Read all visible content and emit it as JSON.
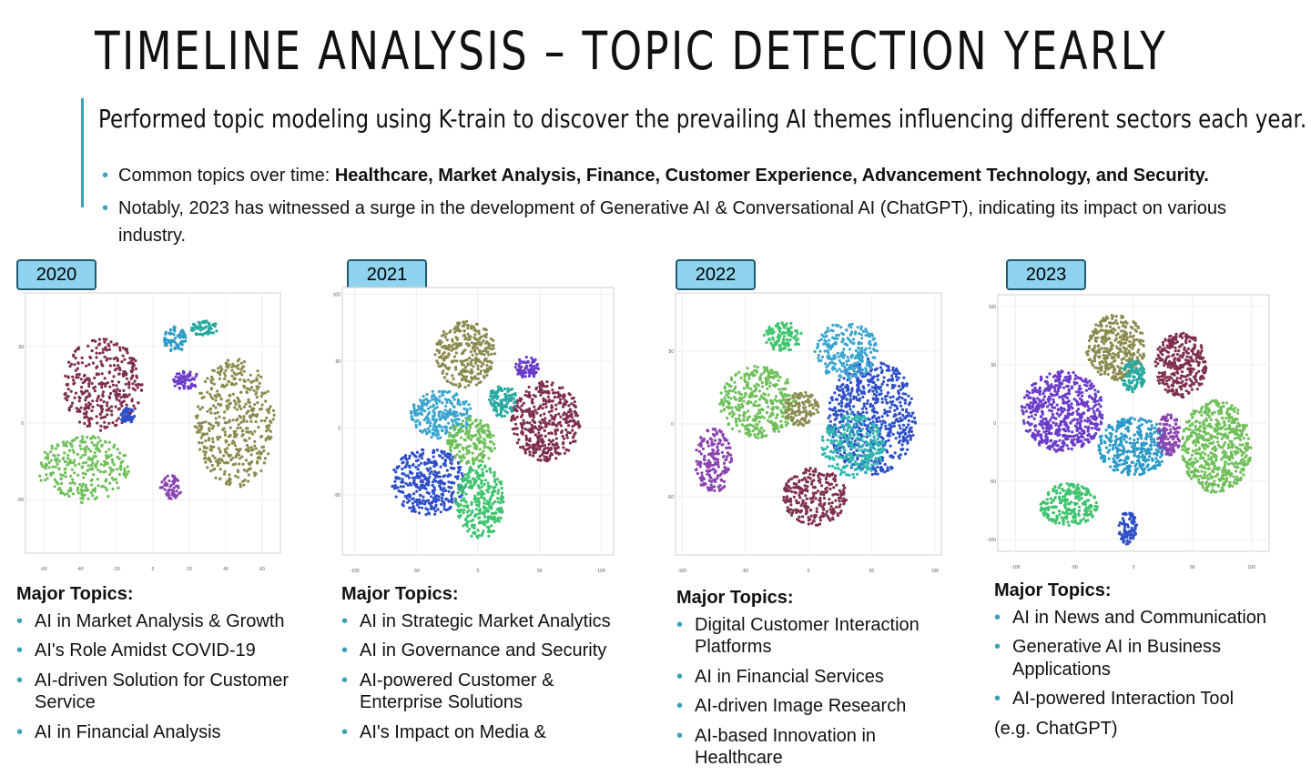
{
  "slide": {
    "title": "TIMELINE ANALYSIS – TOPIC DETECTION YEARLY",
    "subtitle": "Performed topic modeling using K-train to discover the prevailing AI themes influencing different sectors each year.",
    "bullets": [
      {
        "prefix": "Common topics over time: ",
        "bold": "Healthcare, Market Analysis, Finance, Customer Experience, Advancement Technology, and Security.",
        "suffix": ""
      },
      {
        "prefix": "Notably, 2023 has witnessed a surge in the development of Generative AI & Conversational AI (ChatGPT), indicating its impact on various industry.",
        "bold": "",
        "suffix": ""
      }
    ],
    "accent_color": "#3aa0b8",
    "badge_color": "#8fd3ee"
  },
  "panels": [
    {
      "year": "2020",
      "heading": "Major Topics:",
      "topics": [
        "AI in Market Analysis & Growth",
        "AI's Role Amidst COVID-19",
        "AI-driven Solution for Customer Service",
        "AI in Financial Analysis"
      ],
      "note": ""
    },
    {
      "year": "2021",
      "heading": "Major Topics:",
      "topics": [
        "AI in Strategic Market Analytics",
        "AI in Governance and Security",
        "AI-powered Customer & Enterprise Solutions",
        "AI's Impact on Media &"
      ],
      "note": ""
    },
    {
      "year": "2022",
      "heading": "Major Topics:",
      "topics": [
        "Digital Customer Interaction Platforms",
        "AI in Financial Services",
        "AI-driven Image Research",
        "AI-based Innovation in Healthcare"
      ],
      "note": ""
    },
    {
      "year": "2023",
      "heading": "Major Topics:",
      "topics": [
        "AI in News and Communication",
        "Generative AI in Business Applications",
        "AI-powered Interaction Tool"
      ],
      "note": "(e.g. ChatGPT)"
    }
  ],
  "chart_data": [
    {
      "type": "scatter",
      "x_ticks": [
        "-60",
        "-40",
        "-20",
        "0",
        "20",
        "40",
        "60"
      ],
      "y_ticks": [
        "50",
        "0",
        "-50"
      ],
      "clusters": [
        {
          "color": "#7e2f4f",
          "cx": -28,
          "cy": 25,
          "rx": 22,
          "ry": 30
        },
        {
          "color": "#6fbf5a",
          "cx": -38,
          "cy": -30,
          "rx": 25,
          "ry": 22
        },
        {
          "color": "#8b8a4f",
          "cx": 45,
          "cy": 0,
          "rx": 22,
          "ry": 42
        },
        {
          "color": "#2b9ac7",
          "cx": 12,
          "cy": 55,
          "rx": 6,
          "ry": 10
        },
        {
          "color": "#27a8a0",
          "cx": 28,
          "cy": 62,
          "rx": 8,
          "ry": 5
        },
        {
          "color": "#6a3cc8",
          "cx": 18,
          "cy": 28,
          "rx": 8,
          "ry": 6
        },
        {
          "color": "#8a44b0",
          "cx": 10,
          "cy": -42,
          "rx": 6,
          "ry": 8
        },
        {
          "color": "#2f4fc8",
          "cx": -14,
          "cy": 5,
          "rx": 4,
          "ry": 5
        }
      ]
    },
    {
      "type": "scatter",
      "x_ticks": [
        "-100",
        "-50",
        "0",
        "50",
        "100"
      ],
      "y_ticks": [
        "100",
        "50",
        "0",
        "-50"
      ],
      "clusters": [
        {
          "color": "#7e2f4f",
          "cx": 55,
          "cy": 5,
          "rx": 28,
          "ry": 30
        },
        {
          "color": "#2f4fc8",
          "cx": -40,
          "cy": -40,
          "rx": 30,
          "ry": 25
        },
        {
          "color": "#3fc46e",
          "cx": 2,
          "cy": -55,
          "rx": 20,
          "ry": 28
        },
        {
          "color": "#3aa6cf",
          "cx": -30,
          "cy": 10,
          "rx": 25,
          "ry": 18
        },
        {
          "color": "#8b8a4f",
          "cx": -10,
          "cy": 55,
          "rx": 25,
          "ry": 25
        },
        {
          "color": "#27a8a0",
          "cx": 20,
          "cy": 20,
          "rx": 12,
          "ry": 12
        },
        {
          "color": "#6fbf5a",
          "cx": -5,
          "cy": -10,
          "rx": 20,
          "ry": 18
        },
        {
          "color": "#6a3cc8",
          "cx": 40,
          "cy": 45,
          "rx": 10,
          "ry": 8
        }
      ]
    },
    {
      "type": "scatter",
      "x_ticks": [
        "-100",
        "-50",
        "0",
        "50",
        "100"
      ],
      "y_ticks": [
        "50",
        "0",
        "-50"
      ],
      "clusters": [
        {
          "color": "#2f4fc8",
          "cx": 50,
          "cy": 5,
          "rx": 35,
          "ry": 40
        },
        {
          "color": "#6fbf5a",
          "cx": -40,
          "cy": 15,
          "rx": 30,
          "ry": 25
        },
        {
          "color": "#7e2f4f",
          "cx": 5,
          "cy": -50,
          "rx": 25,
          "ry": 20
        },
        {
          "color": "#8a44b0",
          "cx": -75,
          "cy": -25,
          "rx": 15,
          "ry": 22
        },
        {
          "color": "#2fb8b0",
          "cx": 35,
          "cy": -15,
          "rx": 25,
          "ry": 22
        },
        {
          "color": "#3aa6cf",
          "cx": 30,
          "cy": 50,
          "rx": 25,
          "ry": 20
        },
        {
          "color": "#3fc46e",
          "cx": -20,
          "cy": 60,
          "rx": 15,
          "ry": 10
        },
        {
          "color": "#8b8a4f",
          "cx": -5,
          "cy": 10,
          "rx": 14,
          "ry": 12
        }
      ]
    },
    {
      "type": "scatter",
      "x_ticks": [
        "-100",
        "-50",
        "0",
        "50",
        "100"
      ],
      "y_ticks": [
        "100",
        "50",
        "0",
        "-50",
        "-100"
      ],
      "clusters": [
        {
          "color": "#6a3cc8",
          "cx": -60,
          "cy": 10,
          "rx": 35,
          "ry": 35
        },
        {
          "color": "#8b8a4f",
          "cx": -15,
          "cy": 65,
          "rx": 25,
          "ry": 28
        },
        {
          "color": "#7e2f4f",
          "cx": 40,
          "cy": 50,
          "rx": 22,
          "ry": 28
        },
        {
          "color": "#2b9ac7",
          "cx": 0,
          "cy": -20,
          "rx": 30,
          "ry": 25
        },
        {
          "color": "#6fbf5a",
          "cx": 70,
          "cy": -20,
          "rx": 30,
          "ry": 40
        },
        {
          "color": "#3fc46e",
          "cx": -55,
          "cy": -70,
          "rx": 25,
          "ry": 18
        },
        {
          "color": "#2f4fc8",
          "cx": -5,
          "cy": -90,
          "rx": 8,
          "ry": 14
        },
        {
          "color": "#27a8a0",
          "cx": 0,
          "cy": 40,
          "rx": 10,
          "ry": 14
        },
        {
          "color": "#8a44b0",
          "cx": 30,
          "cy": -10,
          "rx": 10,
          "ry": 18
        }
      ]
    }
  ]
}
